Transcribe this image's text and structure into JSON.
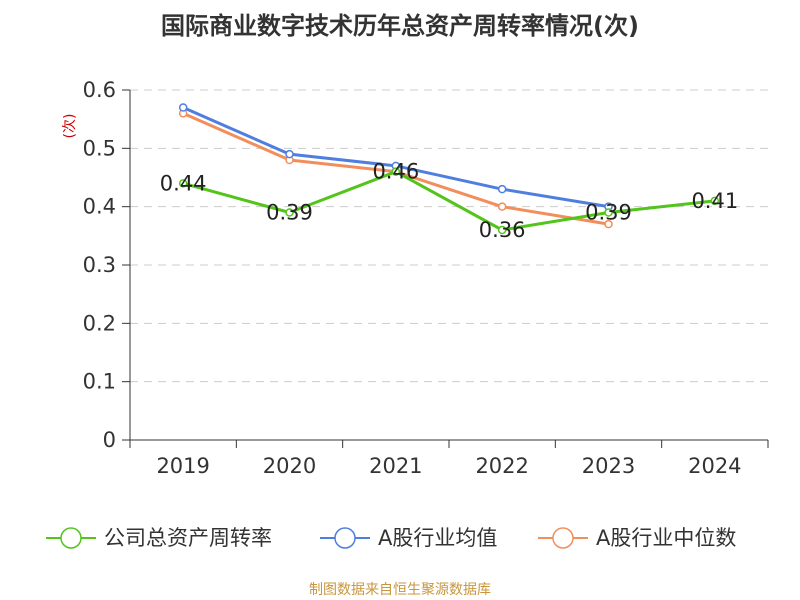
{
  "chart_data": {
    "type": "line",
    "title": "国际商业数字技术历年总资产周转率情况(次)",
    "ylabel": "(次)",
    "xlabel": "",
    "categories": [
      "2019",
      "2020",
      "2021",
      "2022",
      "2023",
      "2024"
    ],
    "ylim": [
      0,
      0.6
    ],
    "yticks": [
      "0",
      "0.1",
      "0.2",
      "0.3",
      "0.4",
      "0.5",
      "0.6"
    ],
    "grid": true,
    "legend_position": "bottom",
    "series": [
      {
        "name": "公司总资产周转率",
        "color": "#52c41a",
        "values": [
          0.44,
          0.39,
          0.46,
          0.36,
          0.39,
          0.41
        ],
        "labels": [
          "0.44",
          "0.39",
          "0.46",
          "0.36",
          "0.39",
          "0.41"
        ]
      },
      {
        "name": "A股行业均值",
        "color": "#4f7fde",
        "values": [
          0.57,
          0.49,
          0.47,
          0.43,
          0.4,
          null
        ]
      },
      {
        "name": "A股行业中位数",
        "color": "#f28e5b",
        "values": [
          0.56,
          0.48,
          0.46,
          0.4,
          0.37,
          null
        ]
      }
    ],
    "source": "制图数据来自恒生聚源数据库"
  }
}
